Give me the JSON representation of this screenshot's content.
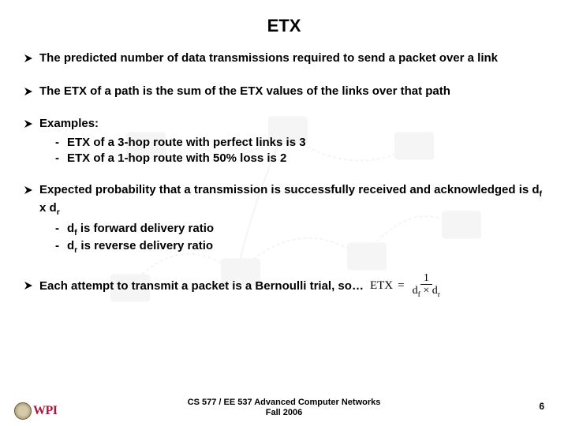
{
  "title": "ETX",
  "bullets": [
    {
      "text": "The predicted number of data transmissions required to send a packet over a link"
    },
    {
      "text": "The ETX of a path is the sum of the ETX values of the links over that path"
    },
    {
      "text": "Examples:",
      "subs": [
        "ETX of a 3-hop route with perfect links is 3",
        "ETX of a 1-hop route with 50% loss is 2"
      ]
    },
    {
      "text_html": "Expected probability that a transmission is successfully received and acknowledged is d<sub class=\"subscript\">f</sub> x d<sub class=\"subscript\">r</sub>",
      "subs_html": [
        "d<sub class=\"subscript\">f</sub> is forward delivery ratio",
        "d<sub class=\"subscript\">r</sub> is reverse delivery ratio"
      ]
    }
  ],
  "last_bullet": "Each attempt to transmit a packet is a Bernoulli trial, so…",
  "formula": {
    "lhs": "ETX",
    "eq": "=",
    "num": "1",
    "den_html": "d<sub class=\"subscript\">f</sub> × d<sub class=\"subscript\">r</sub>"
  },
  "footer": {
    "line1": "CS 577 / EE 537 Advanced Computer Networks",
    "line2": "Fall 2006"
  },
  "page": "6",
  "logo_text": "WPI",
  "colors": {
    "arrow": "#000000",
    "text": "#000000",
    "logo_red": "#a8183a",
    "background": "#ffffff"
  },
  "watermark": {
    "node_fill": "#d0d0d0",
    "link_stroke": "#b0b0b0",
    "opacity": 0.08
  }
}
